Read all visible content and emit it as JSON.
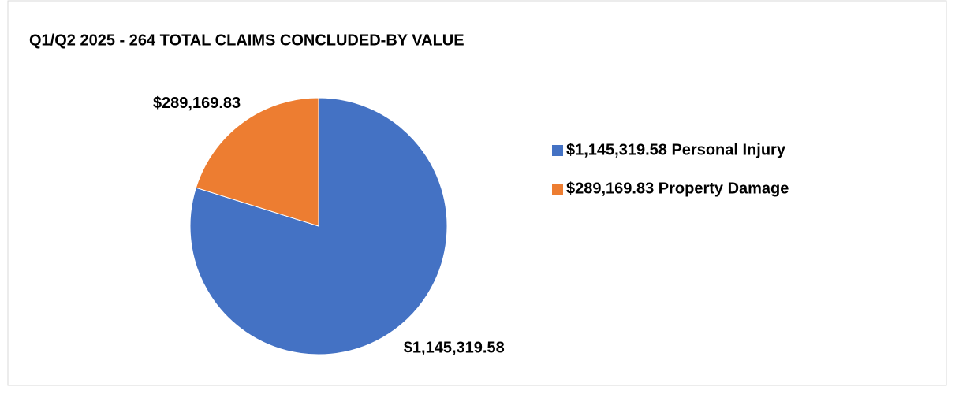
{
  "chart_data": {
    "type": "pie",
    "title": "Q1/Q2 2025 - 264 TOTAL CLAIMS CONCLUDED-BY VALUE",
    "categories": [
      "$1,145,319.58 Personal Injury",
      "$289,169.83 Property Damage"
    ],
    "values": [
      1145319.58,
      289169.83
    ],
    "value_labels": [
      "$1,145,319.58",
      "$289,169.83"
    ],
    "colors": [
      "#4472c4",
      "#ed7d31"
    ],
    "legend": "right"
  }
}
